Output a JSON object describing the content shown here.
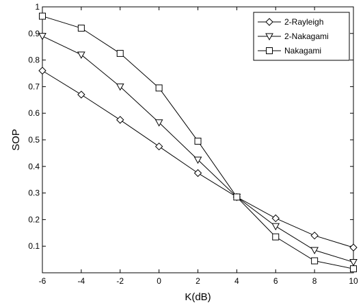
{
  "chart_data": {
    "type": "line",
    "title": "",
    "xlabel": "K(dB)",
    "ylabel": "SOP",
    "x": [
      -6,
      -4,
      -2,
      0,
      2,
      4,
      6,
      8,
      10
    ],
    "xlim": [
      -6,
      10
    ],
    "ylim": [
      0,
      1
    ],
    "xticks": [
      "-6",
      "-4",
      "-2",
      "0",
      "2",
      "4",
      "6",
      "8",
      "10"
    ],
    "yticks": [
      "0.1",
      "0.2",
      "0.3",
      "0.4",
      "0.5",
      "0.6",
      "0.7",
      "0.8",
      "0.9",
      "1"
    ],
    "grid": false,
    "legend_position": "top-right",
    "series": [
      {
        "name": "2-Rayleigh",
        "marker": "diamond",
        "values": [
          0.76,
          0.67,
          0.575,
          0.475,
          0.375,
          0.285,
          0.205,
          0.14,
          0.095
        ]
      },
      {
        "name": "2-Nakagami",
        "marker": "triangle-down",
        "values": [
          0.89,
          0.82,
          0.7,
          0.565,
          0.425,
          0.285,
          0.175,
          0.085,
          0.04
        ]
      },
      {
        "name": "Nakagami",
        "marker": "square",
        "values": [
          0.965,
          0.92,
          0.825,
          0.695,
          0.495,
          0.285,
          0.135,
          0.045,
          0.015
        ]
      }
    ]
  }
}
